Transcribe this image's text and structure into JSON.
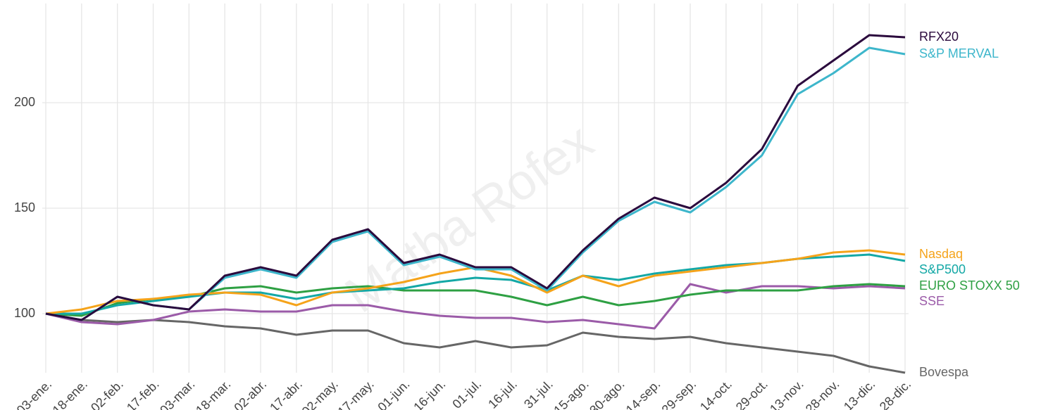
{
  "chart_data": {
    "type": "line",
    "watermark": "Matba Rofex",
    "categories": [
      "03-ene.",
      "18-ene.",
      "02-feb.",
      "17-feb.",
      "03-mar.",
      "18-mar.",
      "02-abr.",
      "17-abr.",
      "02-may.",
      "17-may.",
      "01-jun.",
      "16-jun.",
      "01-jul.",
      "16-jul.",
      "31-jul.",
      "15-ago.",
      "30-ago.",
      "14-sep.",
      "29-sep.",
      "14-oct.",
      "29-oct.",
      "13-nov.",
      "28-nov.",
      "13-dic.",
      "28-dic."
    ],
    "series": [
      {
        "name": "RFX20",
        "color": "#2b0a3d",
        "values": [
          100,
          97,
          108,
          104,
          102,
          118,
          122,
          118,
          135,
          140,
          124,
          128,
          122,
          122,
          112,
          130,
          145,
          155,
          150,
          162,
          178,
          208,
          220,
          232,
          231
        ]
      },
      {
        "name": "S&P MERVAL",
        "color": "#3db6cb",
        "values": [
          100,
          97,
          108,
          104,
          102,
          117,
          121,
          117,
          134,
          139,
          123,
          127,
          121,
          121,
          111,
          129,
          144,
          153,
          148,
          160,
          175,
          204,
          214,
          226,
          223
        ]
      },
      {
        "name": "Nasdaq",
        "color": "#f5a31a",
        "values": [
          100,
          102,
          106,
          107,
          109,
          110,
          109,
          104,
          110,
          112,
          115,
          119,
          122,
          118,
          110,
          118,
          113,
          118,
          120,
          122,
          124,
          126,
          129,
          130,
          128
        ]
      },
      {
        "name": "S&P500",
        "color": "#14a8a6",
        "values": [
          100,
          100,
          104,
          106,
          108,
          110,
          110,
          107,
          110,
          111,
          112,
          115,
          117,
          116,
          111,
          118,
          116,
          119,
          121,
          123,
          124,
          126,
          127,
          128,
          125
        ]
      },
      {
        "name": "EURO STOXX 50",
        "color": "#2ea043",
        "values": [
          100,
          99,
          105,
          107,
          108,
          112,
          113,
          110,
          112,
          113,
          111,
          111,
          111,
          108,
          104,
          108,
          104,
          106,
          109,
          111,
          111,
          111,
          113,
          114,
          113
        ]
      },
      {
        "name": "SSE",
        "color": "#9b5ba8",
        "values": [
          100,
          96,
          95,
          97,
          101,
          102,
          101,
          101,
          104,
          104,
          101,
          99,
          98,
          98,
          96,
          97,
          95,
          93,
          114,
          110,
          113,
          113,
          112,
          113,
          112
        ]
      },
      {
        "name": "Bovespa",
        "color": "#666666",
        "values": [
          100,
          97,
          96,
          97,
          96,
          94,
          93,
          90,
          92,
          92,
          86,
          84,
          87,
          84,
          85,
          91,
          89,
          88,
          89,
          86,
          84,
          82,
          80,
          75,
          72
        ]
      }
    ],
    "ylim": [
      72,
      247
    ],
    "yticks": [
      100,
      150,
      200
    ],
    "grid": true
  }
}
